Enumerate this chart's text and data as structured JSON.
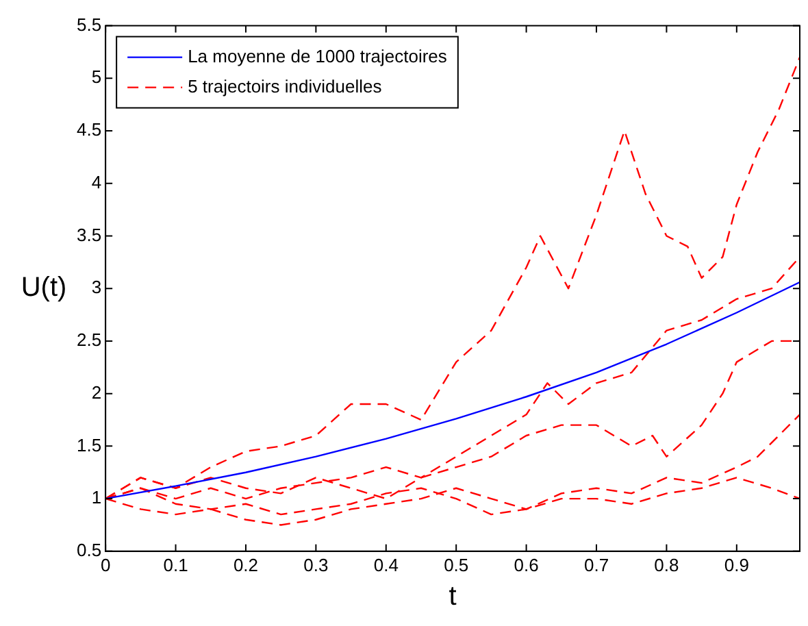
{
  "chart_data": {
    "type": "line",
    "xlabel": "t",
    "ylabel": "U(t)",
    "xlim": [
      0,
      0.99
    ],
    "ylim": [
      0.5,
      5.5
    ],
    "xticks": [
      0,
      0.1,
      0.2,
      0.3,
      0.4,
      0.5,
      0.6,
      0.7,
      0.8,
      0.9
    ],
    "yticks": [
      0.5,
      1,
      1.5,
      2,
      2.5,
      3,
      3.5,
      4,
      4.5,
      5,
      5.5
    ],
    "grid": false,
    "legend": "top left",
    "marker": "none",
    "series": [
      {
        "name": "La moyenne de 1000 trajectoires",
        "color": "#0000ff",
        "line_style": "solid",
        "x": [
          0,
          0.1,
          0.2,
          0.3,
          0.4,
          0.5,
          0.6,
          0.7,
          0.8,
          0.9,
          0.99
        ],
        "values": [
          1,
          1.12,
          1.25,
          1.4,
          1.57,
          1.76,
          1.97,
          2.2,
          2.47,
          2.77,
          3.06
        ]
      },
      {
        "name": "5 trajectoirs individuelles",
        "color": "#ff0000",
        "line_style": "dashed",
        "x": [
          0,
          0.05,
          0.1,
          0.15,
          0.2,
          0.25,
          0.3,
          0.35,
          0.4,
          0.45,
          0.5,
          0.55,
          0.6,
          0.62,
          0.66,
          0.7,
          0.74,
          0.77,
          0.8,
          0.83,
          0.85,
          0.88,
          0.9,
          0.93,
          0.96,
          0.99
        ],
        "values": [
          1,
          1.2,
          1.1,
          1.3,
          1.45,
          1.5,
          1.6,
          1.9,
          1.9,
          1.75,
          2.3,
          2.6,
          3.2,
          3.5,
          3.0,
          3.7,
          4.5,
          3.9,
          3.5,
          3.4,
          3.1,
          3.3,
          3.8,
          4.3,
          4.7,
          5.2
        ]
      },
      {
        "color": "#ff0000",
        "line_style": "dashed",
        "x": [
          0,
          0.05,
          0.1,
          0.15,
          0.2,
          0.25,
          0.3,
          0.35,
          0.4,
          0.45,
          0.5,
          0.55,
          0.6,
          0.63,
          0.66,
          0.7,
          0.75,
          0.8,
          0.85,
          0.9,
          0.95,
          0.99
        ],
        "values": [
          1,
          1.1,
          1,
          1.1,
          1,
          1.1,
          1.15,
          1.2,
          1.3,
          1.2,
          1.4,
          1.6,
          1.8,
          2.1,
          1.9,
          2.1,
          2.2,
          2.6,
          2.7,
          2.9,
          3,
          3.3
        ]
      },
      {
        "color": "#ff0000",
        "line_style": "dashed",
        "x": [
          0,
          0.05,
          0.1,
          0.15,
          0.2,
          0.25,
          0.3,
          0.35,
          0.4,
          0.45,
          0.5,
          0.55,
          0.6,
          0.65,
          0.7,
          0.75,
          0.78,
          0.8,
          0.85,
          0.88,
          0.9,
          0.95,
          0.99
        ],
        "values": [
          1,
          1.2,
          1.1,
          1.2,
          1.1,
          1.05,
          1.2,
          1.1,
          1,
          1.2,
          1.3,
          1.4,
          1.6,
          1.7,
          1.7,
          1.5,
          1.6,
          1.4,
          1.7,
          2,
          2.3,
          2.5,
          2.5
        ]
      },
      {
        "color": "#ff0000",
        "line_style": "dashed",
        "x": [
          0,
          0.05,
          0.1,
          0.15,
          0.2,
          0.25,
          0.3,
          0.35,
          0.4,
          0.45,
          0.5,
          0.55,
          0.6,
          0.65,
          0.7,
          0.75,
          0.8,
          0.85,
          0.9,
          0.93,
          0.96,
          0.99
        ],
        "values": [
          1,
          0.9,
          0.85,
          0.9,
          0.8,
          0.75,
          0.8,
          0.9,
          0.95,
          1,
          1.1,
          1,
          0.9,
          1.05,
          1.1,
          1.05,
          1.2,
          1.15,
          1.3,
          1.4,
          1.6,
          1.8
        ]
      },
      {
        "color": "#ff0000",
        "line_style": "dashed",
        "x": [
          0,
          0.05,
          0.1,
          0.15,
          0.2,
          0.25,
          0.3,
          0.35,
          0.4,
          0.45,
          0.5,
          0.55,
          0.6,
          0.65,
          0.7,
          0.75,
          0.8,
          0.85,
          0.9,
          0.95,
          0.99
        ],
        "values": [
          1,
          1.1,
          0.95,
          0.9,
          0.95,
          0.85,
          0.9,
          0.95,
          1.05,
          1.1,
          1,
          0.85,
          0.9,
          1,
          1,
          0.95,
          1.05,
          1.1,
          1.2,
          1.1,
          1
        ]
      }
    ]
  }
}
